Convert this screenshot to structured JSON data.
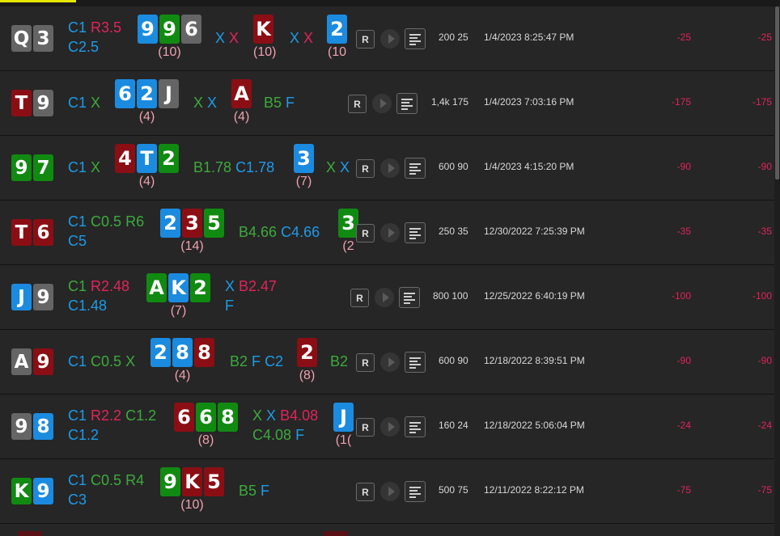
{
  "rows": [
    {
      "hole": [
        {
          "r": "Q",
          "s": "s"
        },
        {
          "r": "3",
          "s": "s"
        }
      ],
      "preflop": {
        "top": [
          {
            "t": "C1",
            "c": "blue"
          },
          {
            "t": "R3.5",
            "c": "red"
          }
        ],
        "bottom": [
          {
            "t": "C2.5",
            "c": "blue"
          }
        ]
      },
      "flop": {
        "cards": [
          {
            "r": "9",
            "s": "d"
          },
          {
            "r": "9",
            "s": "c"
          },
          {
            "r": "6",
            "s": "s"
          }
        ],
        "pot": "(10)"
      },
      "flop_actions": {
        "top": [
          {
            "t": "X",
            "c": "blue"
          },
          {
            "t": "X",
            "c": "red"
          }
        ],
        "bottom": []
      },
      "turn": {
        "cards": [
          {
            "r": "K",
            "s": "h"
          }
        ],
        "pot": "(10)"
      },
      "turn_actions": {
        "top": [
          {
            "t": "X",
            "c": "blue"
          },
          {
            "t": "X",
            "c": "red"
          }
        ],
        "bottom": []
      },
      "river": {
        "cards": [
          {
            "r": "2",
            "s": "d"
          }
        ],
        "pot": "(10"
      },
      "river_actions": {
        "top": [],
        "bottom": []
      },
      "replay_label": "R",
      "stakes": "200 25",
      "date": "1/4/2023 8:25:47 PM",
      "result1": "-25",
      "result2": "-25"
    },
    {
      "hole": [
        {
          "r": "T",
          "s": "h"
        },
        {
          "r": "9",
          "s": "s"
        }
      ],
      "preflop": {
        "top": [
          {
            "t": "C1",
            "c": "blue"
          },
          {
            "t": "X",
            "c": "green"
          }
        ],
        "bottom": []
      },
      "flop": {
        "cards": [
          {
            "r": "6",
            "s": "d"
          },
          {
            "r": "2",
            "s": "d"
          },
          {
            "r": "J",
            "s": "s"
          }
        ],
        "pot": "(4)"
      },
      "flop_actions": {
        "top": [
          {
            "t": "X",
            "c": "green"
          },
          {
            "t": "X",
            "c": "blue"
          }
        ],
        "bottom": []
      },
      "turn": {
        "cards": [
          {
            "r": "A",
            "s": "h"
          }
        ],
        "pot": "(4)"
      },
      "turn_actions": {
        "top": [
          {
            "t": "B5",
            "c": "green"
          },
          {
            "t": "F",
            "c": "blue"
          }
        ],
        "bottom": []
      },
      "river": null,
      "river_actions": {
        "top": [],
        "bottom": []
      },
      "replay_label": "R",
      "stakes": "1,4k 175",
      "date": "1/4/2023 7:03:16 PM",
      "result1": "-175",
      "result2": "-175"
    },
    {
      "hole": [
        {
          "r": "9",
          "s": "c"
        },
        {
          "r": "7",
          "s": "c"
        }
      ],
      "preflop": {
        "top": [
          {
            "t": "C1",
            "c": "blue"
          },
          {
            "t": "X",
            "c": "green"
          }
        ],
        "bottom": []
      },
      "flop": {
        "cards": [
          {
            "r": "4",
            "s": "h"
          },
          {
            "r": "T",
            "s": "d"
          },
          {
            "r": "2",
            "s": "c"
          }
        ],
        "pot": "(4)"
      },
      "flop_actions": {
        "top": [
          {
            "t": "B1.78",
            "c": "green"
          },
          {
            "t": "C1.78",
            "c": "blue"
          }
        ],
        "bottom": []
      },
      "turn": {
        "cards": [
          {
            "r": "3",
            "s": "d"
          }
        ],
        "pot": "(7)"
      },
      "turn_actions": {
        "top": [
          {
            "t": "X",
            "c": "green"
          },
          {
            "t": "X",
            "c": "blue"
          }
        ],
        "bottom": []
      },
      "river": null,
      "river_actions": {
        "top": [],
        "bottom": []
      },
      "replay_label": "R",
      "stakes": "600 90",
      "date": "1/4/2023 4:15:20 PM",
      "result1": "-90",
      "result2": "-90"
    },
    {
      "hole": [
        {
          "r": "T",
          "s": "h"
        },
        {
          "r": "6",
          "s": "h"
        }
      ],
      "preflop": {
        "top": [
          {
            "t": "C1",
            "c": "blue"
          },
          {
            "t": "C0.5",
            "c": "green"
          },
          {
            "t": "R6",
            "c": "green"
          }
        ],
        "bottom": [
          {
            "t": "C5",
            "c": "blue"
          }
        ]
      },
      "flop": {
        "cards": [
          {
            "r": "2",
            "s": "d"
          },
          {
            "r": "3",
            "s": "h"
          },
          {
            "r": "5",
            "s": "c"
          }
        ],
        "pot": "(14)"
      },
      "flop_actions": {
        "top": [
          {
            "t": "B4.66",
            "c": "green"
          },
          {
            "t": "C4.66",
            "c": "blue"
          }
        ],
        "bottom": []
      },
      "turn": {
        "cards": [
          {
            "r": "3",
            "s": "c"
          }
        ],
        "pot": "(2"
      },
      "turn_actions": {
        "top": [],
        "bottom": []
      },
      "river": null,
      "river_actions": {
        "top": [],
        "bottom": []
      },
      "replay_label": "R",
      "stakes": "250 35",
      "date": "12/30/2022 7:25:39 PM",
      "result1": "-35",
      "result2": "-35"
    },
    {
      "hole": [
        {
          "r": "J",
          "s": "d"
        },
        {
          "r": "9",
          "s": "s"
        }
      ],
      "preflop": {
        "top": [
          {
            "t": "C1",
            "c": "green"
          },
          {
            "t": "R2.48",
            "c": "red"
          }
        ],
        "bottom": [
          {
            "t": "C1.48",
            "c": "blue"
          }
        ]
      },
      "flop": {
        "cards": [
          {
            "r": "A",
            "s": "c"
          },
          {
            "r": "K",
            "s": "d"
          },
          {
            "r": "2",
            "s": "c"
          }
        ],
        "pot": "(7)"
      },
      "flop_actions": {
        "top": [
          {
            "t": "X",
            "c": "blue"
          },
          {
            "t": "B2.47",
            "c": "red"
          }
        ],
        "bottom": [
          {
            "t": "F",
            "c": "blue"
          }
        ]
      },
      "turn": null,
      "turn_actions": {
        "top": [],
        "bottom": []
      },
      "river": null,
      "river_actions": {
        "top": [],
        "bottom": []
      },
      "replay_label": "R",
      "stakes": "800 100",
      "date": "12/25/2022 6:40:19 PM",
      "result1": "-100",
      "result2": "-100"
    },
    {
      "hole": [
        {
          "r": "A",
          "s": "s"
        },
        {
          "r": "9",
          "s": "h"
        }
      ],
      "preflop": {
        "top": [
          {
            "t": "C1",
            "c": "blue"
          },
          {
            "t": "C0.5",
            "c": "green"
          },
          {
            "t": "X",
            "c": "green"
          }
        ],
        "bottom": []
      },
      "flop": {
        "cards": [
          {
            "r": "2",
            "s": "d"
          },
          {
            "r": "8",
            "s": "d"
          },
          {
            "r": "8",
            "s": "h"
          }
        ],
        "pot": "(4)"
      },
      "flop_actions": {
        "top": [
          {
            "t": "B2",
            "c": "green"
          },
          {
            "t": "F",
            "c": "blue"
          },
          {
            "t": "C2",
            "c": "blue"
          }
        ],
        "bottom": []
      },
      "turn": {
        "cards": [
          {
            "r": "2",
            "s": "h"
          }
        ],
        "pot": "(8)"
      },
      "turn_actions": {
        "top": [
          {
            "t": "B2",
            "c": "green"
          }
        ],
        "bottom": []
      },
      "river": null,
      "river_actions": {
        "top": [],
        "bottom": []
      },
      "replay_label": "R",
      "stakes": "600 90",
      "date": "12/18/2022 8:39:51 PM",
      "result1": "-90",
      "result2": "-90"
    },
    {
      "hole": [
        {
          "r": "9",
          "s": "s"
        },
        {
          "r": "8",
          "s": "d"
        }
      ],
      "preflop": {
        "top": [
          {
            "t": "C1",
            "c": "blue"
          },
          {
            "t": "R2.2",
            "c": "red"
          },
          {
            "t": "C1.2",
            "c": "green"
          }
        ],
        "bottom": [
          {
            "t": "C1.2",
            "c": "blue"
          }
        ]
      },
      "flop": {
        "cards": [
          {
            "r": "6",
            "s": "h"
          },
          {
            "r": "6",
            "s": "c"
          },
          {
            "r": "8",
            "s": "c"
          }
        ],
        "pot": "(8)"
      },
      "flop_actions": {
        "top": [
          {
            "t": "X",
            "c": "green"
          },
          {
            "t": "X",
            "c": "blue"
          },
          {
            "t": "B4.08",
            "c": "red"
          }
        ],
        "bottom": [
          {
            "t": "C4.08",
            "c": "green"
          },
          {
            "t": "F",
            "c": "blue"
          }
        ]
      },
      "turn": {
        "cards": [
          {
            "r": "J",
            "s": "d"
          }
        ],
        "pot": "(1("
      },
      "turn_actions": {
        "top": [],
        "bottom": []
      },
      "river": null,
      "river_actions": {
        "top": [],
        "bottom": []
      },
      "replay_label": "R",
      "stakes": "160 24",
      "date": "12/18/2022 5:06:04 PM",
      "result1": "-24",
      "result2": "-24"
    },
    {
      "hole": [
        {
          "r": "K",
          "s": "c"
        },
        {
          "r": "9",
          "s": "d"
        }
      ],
      "preflop": {
        "top": [
          {
            "t": "C1",
            "c": "blue"
          },
          {
            "t": "C0.5",
            "c": "green"
          },
          {
            "t": "R4",
            "c": "green"
          }
        ],
        "bottom": [
          {
            "t": "C3",
            "c": "blue"
          }
        ]
      },
      "flop": {
        "cards": [
          {
            "r": "9",
            "s": "c"
          },
          {
            "r": "K",
            "s": "h"
          },
          {
            "r": "5",
            "s": "h"
          }
        ],
        "pot": "(10)"
      },
      "flop_actions": {
        "top": [
          {
            "t": "B5",
            "c": "green"
          },
          {
            "t": "F",
            "c": "blue"
          }
        ],
        "bottom": []
      },
      "turn": null,
      "turn_actions": {
        "top": [],
        "bottom": []
      },
      "river": null,
      "river_actions": {
        "top": [],
        "bottom": []
      },
      "replay_label": "R",
      "stakes": "500 75",
      "date": "12/11/2022 8:22:12 PM",
      "result1": "-75",
      "result2": "-75"
    }
  ],
  "colors": {
    "spade": "#656565",
    "heart": "#8b0e14",
    "diamond": "#1b8be0",
    "club": "#118a11",
    "loss": "#e0245a",
    "accent": "#e6e600"
  },
  "icons": {
    "replay": "R-button",
    "play": "play-icon",
    "details": "list-icon"
  }
}
